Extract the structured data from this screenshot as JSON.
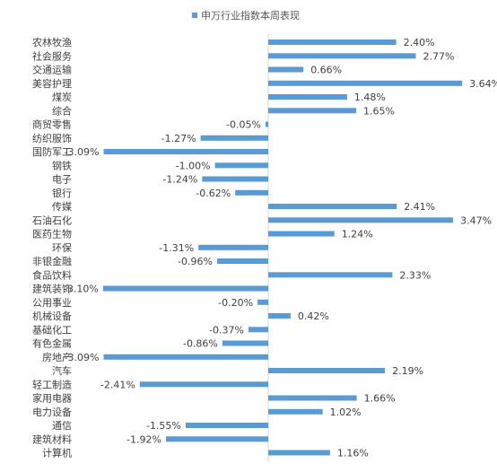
{
  "chart_data": {
    "type": "bar",
    "orientation": "horizontal",
    "legend": {
      "position": "top",
      "label": "申万行业指数本周表现"
    },
    "color": "#5B9BD5",
    "grid": false,
    "xlim": [
      -3.5,
      4.0
    ],
    "categories": [
      "农林牧渔",
      "社会服务",
      "交通运输",
      "美容护理",
      "煤炭",
      "综合",
      "商贸零售",
      "纺织服饰",
      "国防军工",
      "钢铁",
      "电子",
      "银行",
      "传媒",
      "石油石化",
      "医药生物",
      "环保",
      "非银金融",
      "食品饮料",
      "建筑装饰",
      "公用事业",
      "机械设备",
      "基础化工",
      "有色金属",
      "房地产",
      "汽车",
      "轻工制造",
      "家用电器",
      "电力设备",
      "通信",
      "建筑材料",
      "计算机"
    ],
    "values": [
      2.4,
      2.77,
      0.66,
      3.64,
      1.48,
      1.65,
      -0.05,
      -1.27,
      -3.09,
      -1.0,
      -1.24,
      -0.62,
      2.41,
      3.47,
      1.24,
      -1.31,
      -0.96,
      2.33,
      -3.1,
      -0.2,
      0.42,
      -0.37,
      -0.86,
      -3.09,
      2.19,
      -2.41,
      1.66,
      1.02,
      -1.55,
      -1.92,
      1.16
    ],
    "value_labels": [
      "2.40%",
      "2.77%",
      "0.66%",
      "3.64%",
      "1.48%",
      "1.65%",
      "-0.05%",
      "-1.27%",
      "-3.09%",
      "-1.00%",
      "-1.24%",
      "-0.62%",
      "2.41%",
      "3.47%",
      "1.24%",
      "-1.31%",
      "-0.96%",
      "2.33%",
      "-3.10%",
      "-0.20%",
      "0.42%",
      "-0.37%",
      "-0.86%",
      "-3.09%",
      "2.19%",
      "-2.41%",
      "1.66%",
      "1.02%",
      "-1.55%",
      "-1.92%",
      "1.16%"
    ]
  }
}
